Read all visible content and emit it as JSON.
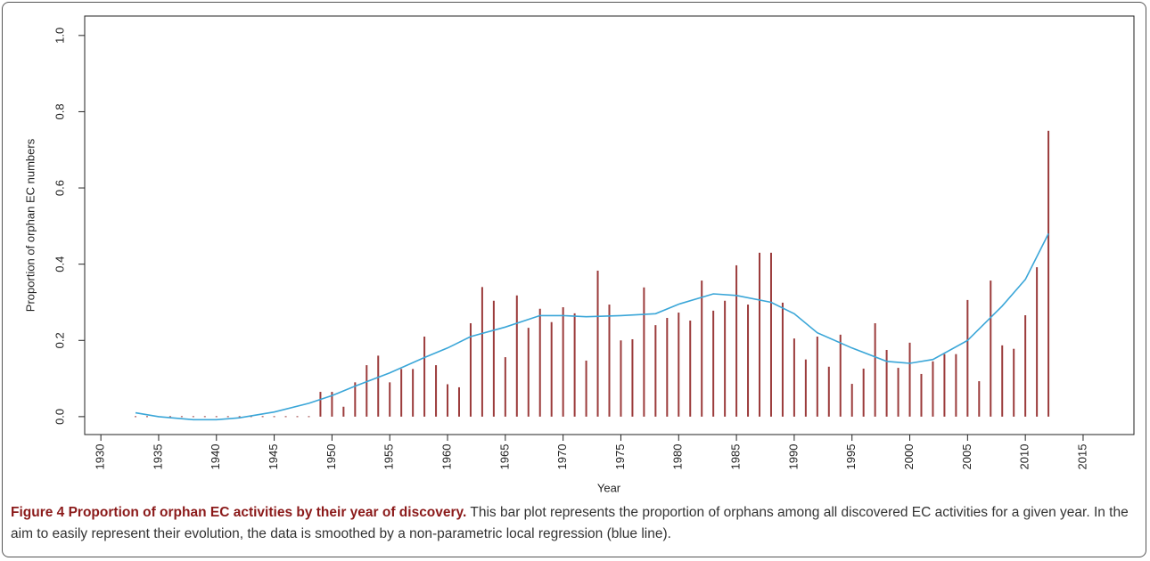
{
  "chart_data": {
    "type": "bar",
    "y_label": "Proportion of orphan EC numbers",
    "x_label": "Year",
    "x": [
      1933,
      1934,
      1935,
      1936,
      1937,
      1938,
      1939,
      1940,
      1941,
      1942,
      1943,
      1944,
      1945,
      1946,
      1947,
      1948,
      1949,
      1950,
      1951,
      1952,
      1953,
      1954,
      1955,
      1956,
      1957,
      1958,
      1959,
      1960,
      1961,
      1962,
      1963,
      1964,
      1965,
      1966,
      1967,
      1968,
      1969,
      1970,
      1971,
      1972,
      1973,
      1974,
      1975,
      1976,
      1977,
      1978,
      1979,
      1980,
      1981,
      1982,
      1983,
      1984,
      1985,
      1986,
      1987,
      1988,
      1989,
      1990,
      1991,
      1992,
      1993,
      1994,
      1995,
      1996,
      1997,
      1998,
      1999,
      2000,
      2001,
      2002,
      2003,
      2004,
      2005,
      2006,
      2007,
      2008,
      2009,
      2010,
      2011,
      2012
    ],
    "values": [
      0,
      0,
      0,
      0,
      0,
      0,
      0,
      0,
      0,
      0,
      0,
      0,
      0,
      0,
      0,
      0,
      0.065,
      0.065,
      0.026,
      0.09,
      0.135,
      0.16,
      0.09,
      0.125,
      0.125,
      0.21,
      0.135,
      0.085,
      0.077,
      0.245,
      0.34,
      0.304,
      0.156,
      0.318,
      0.233,
      0.283,
      0.248,
      0.287,
      0.271,
      0.147,
      0.383,
      0.294,
      0.2,
      0.203,
      0.339,
      0.24,
      0.259,
      0.273,
      0.252,
      0.357,
      0.278,
      0.304,
      0.397,
      0.294,
      0.43,
      0.43,
      0.299,
      0.205,
      0.15,
      0.21,
      0.131,
      0.215,
      0.086,
      0.126,
      0.245,
      0.175,
      0.128,
      0.194,
      0.112,
      0.145,
      0.164,
      0.164,
      0.306,
      0.093,
      0.357,
      0.187,
      0.178,
      0.266,
      0.392,
      0.75
    ],
    "color": "#9b3b3b",
    "smooth": {
      "x": [
        1933,
        1935,
        1938,
        1940,
        1942,
        1945,
        1948,
        1950,
        1952,
        1955,
        1958,
        1960,
        1962,
        1965,
        1968,
        1970,
        1972,
        1975,
        1978,
        1980,
        1983,
        1985,
        1988,
        1990,
        1992,
        1995,
        1998,
        2000,
        2002,
        2005,
        2008,
        2010,
        2012
      ],
      "values": [
        0.01,
        0,
        -0.008,
        -0.008,
        -0.003,
        0.012,
        0.035,
        0.055,
        0.08,
        0.115,
        0.155,
        0.18,
        0.21,
        0.235,
        0.265,
        0.265,
        0.262,
        0.265,
        0.27,
        0.295,
        0.322,
        0.318,
        0.3,
        0.27,
        0.22,
        0.18,
        0.145,
        0.14,
        0.15,
        0.2,
        0.29,
        0.36,
        0.48
      ],
      "color": "#3aa6d8"
    },
    "xlim": [
      1928.6,
      2019.4
    ],
    "xticks": [
      1930,
      1935,
      1940,
      1945,
      1950,
      1955,
      1960,
      1965,
      1970,
      1975,
      1980,
      1985,
      1990,
      1995,
      2000,
      2005,
      2010,
      2015
    ],
    "ylim": [
      -0.047,
      1.051
    ],
    "yticks": [
      {
        "value": 0,
        "label": "0.0"
      },
      0.2,
      0.4,
      0.6,
      0.8,
      {
        "value": 1,
        "label": "1.0"
      }
    ],
    "caption": {
      "bold": "Figure 4 Proportion of orphan EC activities by their year of discovery.",
      "text": "This bar plot represents the proportion of orphans among all discovered EC activities for a given year. In the aim to easily represent their evolution, the data is smoothed by a non-parametric local regression (blue line)."
    }
  }
}
